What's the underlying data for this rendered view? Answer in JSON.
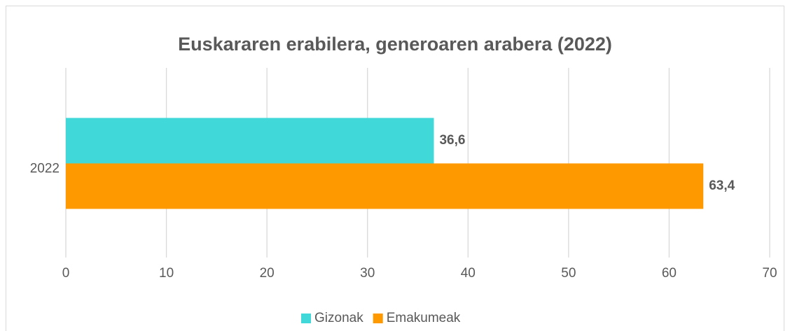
{
  "chart_data": {
    "type": "bar",
    "orientation": "horizontal",
    "title": "Euskararen erabilera, generoaren arabera (2022)",
    "categories": [
      "2022"
    ],
    "series": [
      {
        "name": "Gizonak",
        "color": "#40d8d8",
        "values": [
          36.6
        ],
        "value_labels": [
          "36,6"
        ]
      },
      {
        "name": "Emakumeak",
        "color": "#ff9900",
        "values": [
          63.4
        ],
        "value_labels": [
          "63,4"
        ]
      }
    ],
    "xlim": [
      0,
      70
    ],
    "xticks": [
      0,
      10,
      20,
      30,
      40,
      50,
      60,
      70
    ],
    "grid": true,
    "legend": "bottom"
  }
}
